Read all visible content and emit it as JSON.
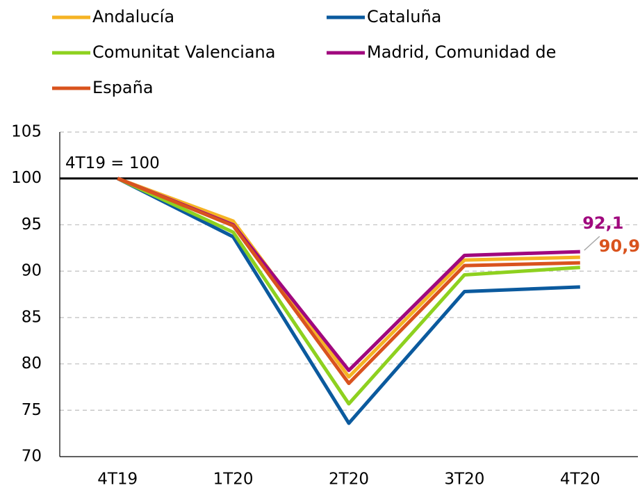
{
  "chart_data": {
    "type": "line",
    "categories": [
      "4T19",
      "1T20",
      "2T20",
      "3T20",
      "4T20"
    ],
    "series": [
      {
        "name": "Andalucía",
        "color": "#f5b324",
        "values": [
          100,
          95.4,
          78.6,
          91.2,
          91.5
        ]
      },
      {
        "name": "Cataluña",
        "color": "#0b5a9e",
        "values": [
          100,
          93.7,
          73.6,
          87.8,
          88.3
        ]
      },
      {
        "name": "Comunitat Valenciana",
        "color": "#8ed11f",
        "values": [
          100,
          94.2,
          75.7,
          89.6,
          90.4
        ]
      },
      {
        "name": "Madrid, Comunidad de",
        "color": "#a0087e",
        "values": [
          100,
          95.0,
          79.3,
          91.7,
          92.1
        ],
        "value_labels": [
          null,
          null,
          null,
          null,
          "92,1"
        ]
      },
      {
        "name": "España",
        "color": "#d9531e",
        "values": [
          100,
          94.9,
          77.9,
          90.6,
          90.9
        ],
        "value_labels": [
          null,
          null,
          null,
          null,
          "90,9"
        ]
      }
    ],
    "reference_line": {
      "value": 100,
      "label": "4T19 = 100"
    },
    "ylim": [
      70,
      105
    ],
    "yticks": [
      70,
      75,
      80,
      85,
      90,
      95,
      100,
      105
    ],
    "grid": true,
    "legend": "top"
  }
}
